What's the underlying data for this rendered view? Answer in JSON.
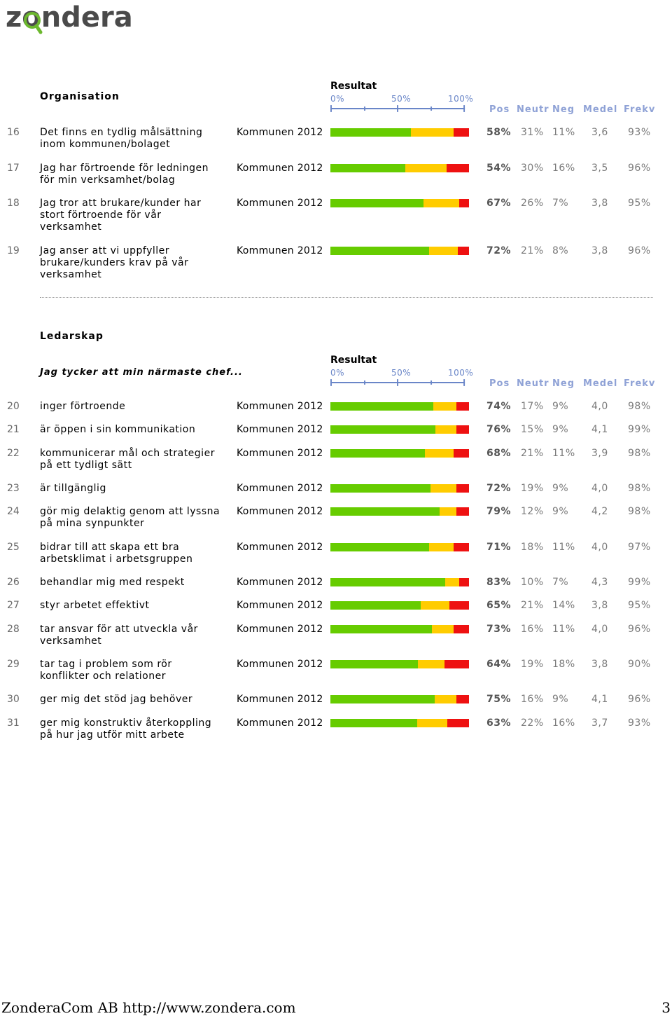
{
  "brand": {
    "logo_text": "zondera"
  },
  "sections": [
    {
      "title": "Organisation",
      "subtitle": ""
    },
    {
      "title": "Ledarskap",
      "subtitle": "Jag tycker att min närmaste chef..."
    }
  ],
  "result_header": {
    "title": "Resultat",
    "scale": [
      "0%",
      "50%",
      "100%"
    ]
  },
  "columns": [
    "Pos",
    "Neutr",
    "Neg",
    "Medel",
    "Frekv"
  ],
  "colors": {
    "positive": "#66cc00",
    "neutral": "#ffcc00",
    "negative": "#ee1111"
  },
  "organisation_rows": [
    {
      "num": "16",
      "question": "Det finns en tydlig målsättning inom kommunen/bolaget",
      "group": "Kommunen 2012",
      "pos": "58%",
      "neutr": "31%",
      "neg": "11%",
      "medel": "3,6",
      "frekv": "93%"
    },
    {
      "num": "17",
      "question": "Jag har förtroende för ledningen för min verksamhet/bolag",
      "group": "Kommunen 2012",
      "pos": "54%",
      "neutr": "30%",
      "neg": "16%",
      "medel": "3,5",
      "frekv": "96%"
    },
    {
      "num": "18",
      "question": "Jag tror att brukare/kunder har stort förtroende för vår verksamhet",
      "group": "Kommunen 2012",
      "pos": "67%",
      "neutr": "26%",
      "neg": "7%",
      "medel": "3,8",
      "frekv": "95%"
    },
    {
      "num": "19",
      "question": "Jag anser att vi uppfyller brukare/kunders krav på vår verksamhet",
      "group": "Kommunen 2012",
      "pos": "72%",
      "neutr": "21%",
      "neg": "8%",
      "medel": "3,8",
      "frekv": "96%"
    }
  ],
  "ledarskap_rows": [
    {
      "num": "20",
      "question": "inger förtroende",
      "group": "Kommunen 2012",
      "pos": "74%",
      "neutr": "17%",
      "neg": "9%",
      "medel": "4,0",
      "frekv": "98%"
    },
    {
      "num": "21",
      "question": "är öppen i sin kommunikation",
      "group": "Kommunen 2012",
      "pos": "76%",
      "neutr": "15%",
      "neg": "9%",
      "medel": "4,1",
      "frekv": "99%"
    },
    {
      "num": "22",
      "question": "kommunicerar mål och strategier på ett tydligt sätt",
      "group": "Kommunen 2012",
      "pos": "68%",
      "neutr": "21%",
      "neg": "11%",
      "medel": "3,9",
      "frekv": "98%"
    },
    {
      "num": "23",
      "question": "är tillgänglig",
      "group": "Kommunen 2012",
      "pos": "72%",
      "neutr": "19%",
      "neg": "9%",
      "medel": "4,0",
      "frekv": "98%"
    },
    {
      "num": "24",
      "question": "gör mig delaktig genom att lyssna på mina synpunkter",
      "group": "Kommunen 2012",
      "pos": "79%",
      "neutr": "12%",
      "neg": "9%",
      "medel": "4,2",
      "frekv": "98%"
    },
    {
      "num": "25",
      "question": "bidrar till att skapa ett bra arbetsklimat i arbetsgruppen",
      "group": "Kommunen 2012",
      "pos": "71%",
      "neutr": "18%",
      "neg": "11%",
      "medel": "4,0",
      "frekv": "97%"
    },
    {
      "num": "26",
      "question": "behandlar mig med respekt",
      "group": "Kommunen 2012",
      "pos": "83%",
      "neutr": "10%",
      "neg": "7%",
      "medel": "4,3",
      "frekv": "99%"
    },
    {
      "num": "27",
      "question": "styr arbetet effektivt",
      "group": "Kommunen 2012",
      "pos": "65%",
      "neutr": "21%",
      "neg": "14%",
      "medel": "3,8",
      "frekv": "95%"
    },
    {
      "num": "28",
      "question": "tar ansvar för att utveckla vår verksamhet",
      "group": "Kommunen 2012",
      "pos": "73%",
      "neutr": "16%",
      "neg": "11%",
      "medel": "4,0",
      "frekv": "96%"
    },
    {
      "num": "29",
      "question": "tar tag i problem som rör konflikter och relationer",
      "group": "Kommunen 2012",
      "pos": "64%",
      "neutr": "19%",
      "neg": "18%",
      "medel": "3,8",
      "frekv": "90%"
    },
    {
      "num": "30",
      "question": "ger mig det stöd jag behöver",
      "group": "Kommunen 2012",
      "pos": "75%",
      "neutr": "16%",
      "neg": "9%",
      "medel": "4,1",
      "frekv": "96%"
    },
    {
      "num": "31",
      "question": "ger mig konstruktiv återkoppling på hur jag utför mitt arbete",
      "group": "Kommunen 2012",
      "pos": "63%",
      "neutr": "22%",
      "neg": "16%",
      "medel": "3,7",
      "frekv": "93%"
    }
  ],
  "footer": {
    "left": "ZonderaCom AB http://www.zondera.com",
    "page": "3"
  }
}
